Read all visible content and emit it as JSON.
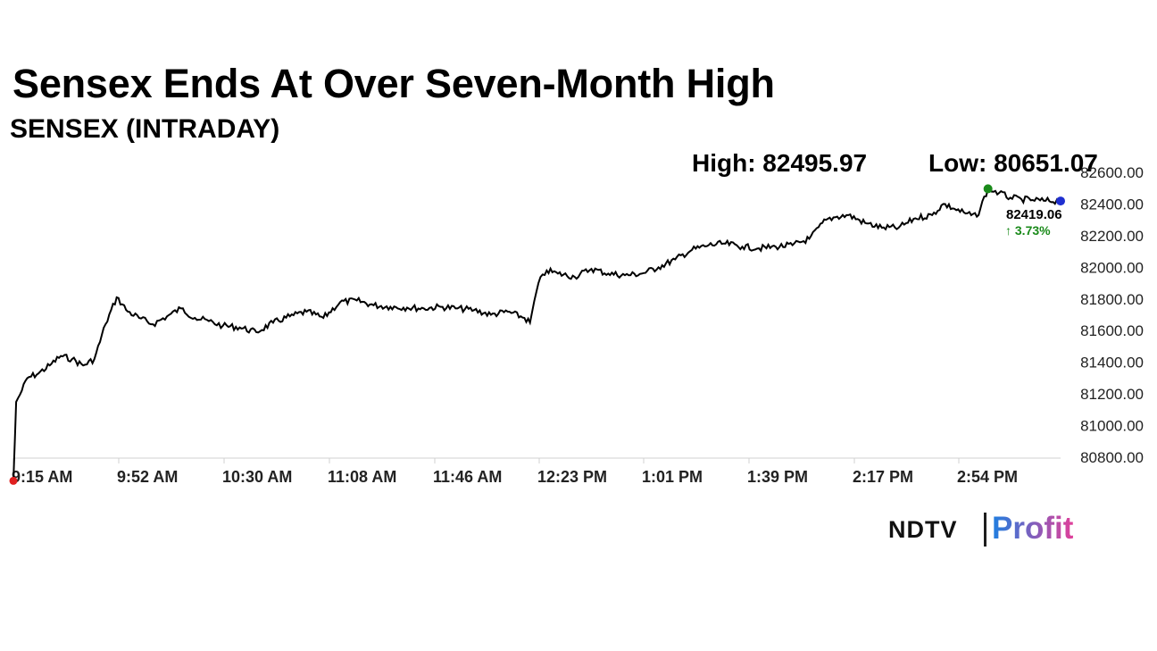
{
  "header": {
    "title": "Sensex Ends At Over Seven-Month High",
    "subtitle": "SENSEX (INTRADAY)"
  },
  "stats": {
    "high_label": "High: 82495.97",
    "low_label": "Low: 80651.07"
  },
  "last_price": {
    "value": "82419.06",
    "change": "↑ 3.73%"
  },
  "colors": {
    "line": "#000000",
    "low_marker": "#e02020",
    "high_marker": "#1a8a1a",
    "last_marker": "#1f2fd0",
    "change_text": "#1a8a1a",
    "logo_gradient_start": "#1f7fe0",
    "logo_gradient_end": "#e0409a"
  },
  "logo": {
    "ndtv": "NDTV",
    "profit": "Profit"
  },
  "chart_data": {
    "type": "line",
    "title": "SENSEX (INTRADAY)",
    "xlabel": "",
    "ylabel": "",
    "x_ticks": [
      "9:15 AM",
      "9:52 AM",
      "10:30 AM",
      "11:08 AM",
      "11:46 AM",
      "12:23 PM",
      "1:01 PM",
      "1:39 PM",
      "2:17 PM",
      "2:54 PM"
    ],
    "y_ticks": [
      80800,
      81000,
      81200,
      81400,
      81600,
      81800,
      82000,
      82200,
      82400,
      82600
    ],
    "y_tick_labels": [
      "80800.00",
      "81000.00",
      "81200.00",
      "81400.00",
      "81600.00",
      "81800.00",
      "82000.00",
      "82200.00",
      "82400.00",
      "82600.00"
    ],
    "ylim": [
      80800,
      82600
    ],
    "xlim": [
      "9:15 AM",
      "3:30 PM"
    ],
    "grid": false,
    "series": [
      {
        "x": [
          "9:15 AM",
          "9:16 AM",
          "9:18 AM",
          "9:20 AM",
          "9:24 AM",
          "9:28 AM",
          "9:32 AM",
          "9:36 AM",
          "9:40 AM",
          "9:44 AM",
          "9:48 AM",
          "9:52 AM",
          "9:56 AM",
          "10:00 AM",
          "10:05 AM",
          "10:10 AM",
          "10:15 AM",
          "10:20 AM",
          "10:25 AM",
          "10:30 AM",
          "10:36 AM",
          "10:42 AM",
          "10:48 AM",
          "10:54 AM",
          "11:00 AM",
          "11:06 AM",
          "11:12 AM",
          "11:18 AM",
          "11:24 AM",
          "11:30 AM",
          "11:36 AM",
          "11:42 AM",
          "11:48 AM",
          "11:54 AM",
          "12:00 PM",
          "12:06 PM",
          "12:12 PM",
          "12:18 PM",
          "12:20 PM",
          "12:23 PM",
          "12:26 PM",
          "12:30 PM",
          "12:36 PM",
          "12:42 PM",
          "12:48 PM",
          "12:54 PM",
          "1:00 PM",
          "1:06 PM",
          "1:12 PM",
          "1:18 PM",
          "1:24 PM",
          "1:30 PM",
          "1:36 PM",
          "1:42 PM",
          "1:48 PM",
          "1:54 PM",
          "2:00 PM",
          "2:06 PM",
          "2:10 PM",
          "2:14 PM",
          "2:20 PM",
          "2:26 PM",
          "2:32 PM",
          "2:38 PM",
          "2:44 PM",
          "2:48 PM",
          "2:52 PM",
          "2:56 PM",
          "3:00 PM",
          "3:04 PM",
          "3:08 PM",
          "3:12 PM",
          "3:16 PM",
          "3:20 PM",
          "3:24 PM",
          "3:30 PM"
        ],
        "y": [
          80651.07,
          81150,
          81220,
          81300,
          81330,
          81380,
          81440,
          81420,
          81380,
          81420,
          81640,
          81810,
          81720,
          81680,
          81640,
          81690,
          81740,
          81680,
          81660,
          81630,
          81620,
          81590,
          81650,
          81690,
          81720,
          81680,
          81780,
          81790,
          81760,
          81750,
          81745,
          81740,
          81750,
          81740,
          81730,
          81700,
          81720,
          81680,
          81650,
          81900,
          81980,
          81960,
          81940,
          81990,
          81960,
          81950,
          81960,
          82000,
          82050,
          82110,
          82140,
          82150,
          82130,
          82120,
          82130,
          82140,
          82180,
          82300,
          82320,
          82330,
          82280,
          82250,
          82250,
          82310,
          82330,
          82400,
          82370,
          82340,
          82320,
          82495.97,
          82470,
          82440,
          82430,
          82425,
          82420,
          82419.06
        ]
      }
    ],
    "low": {
      "x": "9:15 AM",
      "y": 80651.07
    },
    "high": {
      "x": "3:04 PM",
      "y": 82495.97
    },
    "last": {
      "x": "3:30 PM",
      "y": 82419.06
    }
  }
}
